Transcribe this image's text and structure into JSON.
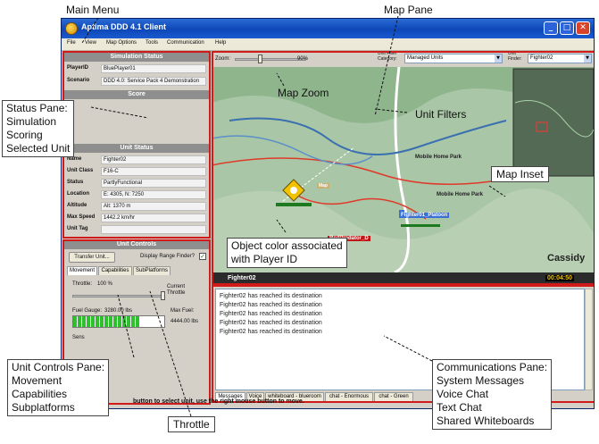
{
  "window": {
    "title": "Aptima DDD 4.1 Client",
    "controls": [
      "_",
      "□",
      "✕"
    ]
  },
  "menu": [
    "File",
    "View",
    "Map Options",
    "Tools",
    "Communication",
    "Help"
  ],
  "simulation_status": {
    "header": "Simulation Status",
    "player_label": "PlayerID",
    "player_value": "BluePlayer01",
    "scenario_label": "Scenario",
    "scenario_value": "DDD 4.0: Service Pack 4 Demonstration"
  },
  "score": {
    "header": "Score"
  },
  "unit_status": {
    "header": "Unit Status",
    "rows": [
      {
        "label": "Name",
        "value": "Fighter02"
      },
      {
        "label": "Unit Class",
        "value": "F16-C"
      },
      {
        "label": "Status",
        "value": "PartlyFunctional"
      },
      {
        "label": "Location",
        "value": "E: 4305, N: 7250"
      },
      {
        "label": "Altitude",
        "value": "Alt: 1370 m"
      },
      {
        "label": "Max Speed",
        "value": "1442.2 km/hr"
      },
      {
        "label": "Unit Tag",
        "value": ""
      }
    ]
  },
  "unit_controls": {
    "header": "Unit Controls",
    "transfer_button": "Transfer Unit...",
    "range_finder_label": "Display Range Finder?",
    "range_finder_checked": true,
    "tabs": [
      "Movement",
      "Capabilities",
      "SubPlatforms"
    ],
    "throttle_label": "Throttle:",
    "throttle_value": "100 %",
    "throttle_fraction": 1.0,
    "current_throttle_label": "Current Throttle",
    "fuel_gauge_label": "Fuel Gauge:",
    "fuel_value": "3280.00 lbs",
    "max_fuel_label": "Max Fuel:",
    "max_fuel_value": "4444.00 lbs",
    "fuel_fraction": 0.74,
    "sensors_label": "Sens"
  },
  "map_toolbar": {
    "zoom_label": "Zoom:",
    "zoom_value": "90%",
    "unit_filter_label": "Unit Filter Category:",
    "unit_filter_value": "Managed Units",
    "unit_finder_label": "Unit Finder:",
    "unit_finder_value": "Fighter02",
    "map_header": "Map"
  },
  "map": {
    "place_labels": [
      "Mobile Home Park",
      "Mobile Home Park",
      "Cassidy"
    ],
    "units": [
      {
        "label": "Fighter01_Platoon",
        "color": "#3a6fd8"
      },
      {
        "label": "RedPredator_D",
        "color": "#c21616"
      }
    ],
    "selected_unit": "Fighter02",
    "clock": "00:04:50"
  },
  "communications": {
    "messages": [
      "Fighter02 has reached its destination",
      "Fighter02 has reached its destination",
      "Fighter02 has reached its destination",
      "Fighter02 has reached its destination",
      "Fighter02 has reached its destination"
    ],
    "tabs": [
      "Messages",
      "Voice",
      "whiteboard - blueroom",
      "chat - Enormous",
      "chat - Green"
    ]
  },
  "status_bar": {
    "text": "button to select unit, use the right mouse button to move."
  },
  "annotations": {
    "main_menu": "Main Menu",
    "map_pane": "Map Pane",
    "map_zoom": "Map Zoom",
    "unit_filters": "Unit Filters",
    "map_inset": "Map Inset",
    "object_color": [
      "Object color associated",
      "with Player ID"
    ],
    "status_pane": [
      "Status Pane:",
      "Simulation",
      "Scoring",
      "Selected Unit"
    ],
    "unit_controls_pane": [
      "Unit Controls Pane:",
      "Movement",
      "Capabilities",
      "Subplatforms"
    ],
    "throttle": "Throttle",
    "communications_pane": [
      "Communications Pane:",
      "System Messages",
      "Voice Chat",
      "Text Chat",
      "Shared Whiteboards"
    ]
  },
  "colors": {
    "title_bar": "#0d47b8",
    "highlight_red": "#d11a1a",
    "fuel_green": "#2ec02e",
    "blue_unit": "#3a6fd8",
    "red_unit": "#c21616",
    "selected_yellow": "#f2c200"
  }
}
